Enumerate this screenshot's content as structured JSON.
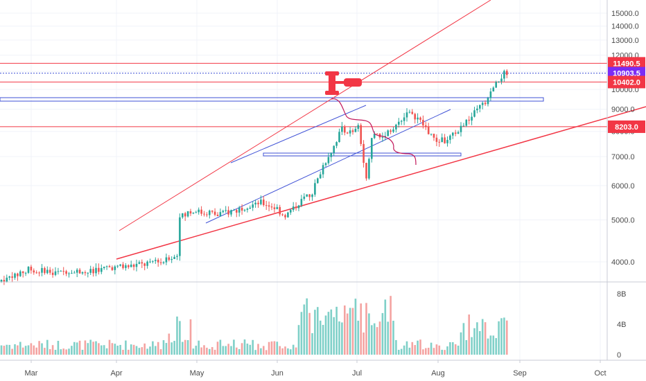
{
  "chart_data": {
    "type": "candlestick",
    "price_axis": {
      "ticks": [
        "4000.0",
        "5000.0",
        "6000.0",
        "7000.0",
        "8000.0",
        "9000.0",
        "10000.0",
        "11000.0",
        "12000.0",
        "13000.0",
        "14000.0",
        "15000.0"
      ],
      "tick_values": [
        4000,
        5000,
        6000,
        7000,
        8000,
        9000,
        10000,
        11000,
        12000,
        13000,
        14000,
        15000
      ],
      "scale": "log"
    },
    "volume_axis": {
      "ticks": [
        "0",
        "4B",
        "8B"
      ],
      "tick_values": [
        0,
        4,
        8
      ]
    },
    "time_axis": {
      "ticks": [
        "Mar",
        "Apr",
        "May",
        "Jun",
        "Jul",
        "Aug",
        "Sep",
        "Oct"
      ]
    },
    "price_badges": [
      {
        "label": "11490.5",
        "value": 11490.5,
        "color": "#f23645"
      },
      {
        "label": "10903.5",
        "value": 10903.5,
        "color": "#7b2cf5"
      },
      {
        "label": "10402.0",
        "value": 10402.0,
        "color": "#f23645"
      },
      {
        "label": "8203.0",
        "value": 8203.0,
        "color": "#f23645"
      }
    ],
    "horizontal_levels": [
      {
        "value": 11490.5,
        "color": "#f23645",
        "style": "solid"
      },
      {
        "value": 10903.5,
        "color": "#3f51d6",
        "style": "dotted"
      },
      {
        "value": 10402.0,
        "color": "#f23645",
        "style": "solid"
      },
      {
        "value": 8203.0,
        "color": "#f23645",
        "style": "solid"
      }
    ],
    "colors": {
      "up": "#26a69a",
      "down": "#ef5350",
      "volume_up": "#7fd0c8",
      "volume_down": "#f4a3a1",
      "trendline_red": "#f23645",
      "channel_blue": "#3f51d6",
      "projection": "#c2185b"
    },
    "grid": true
  }
}
